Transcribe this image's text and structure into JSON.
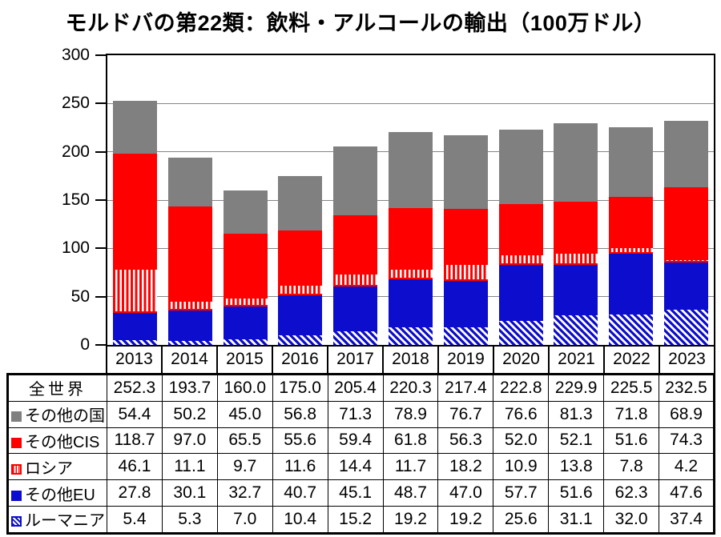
{
  "title": "モルドバの第22類：飲料・アルコールの輸出（100万ドル）",
  "chart_data": {
    "type": "bar",
    "stacked": true,
    "title": "モルドバの第22類：飲料・アルコールの輸出（100万ドル）",
    "unit_label": "100万ドル",
    "categories": [
      "2013",
      "2014",
      "2015",
      "2016",
      "2017",
      "2018",
      "2019",
      "2020",
      "2021",
      "2022",
      "2023"
    ],
    "series": [
      {
        "name": "ルーマニア",
        "pattern": "hatch-blue",
        "color": "#0d0dcd",
        "values": [
          5.4,
          5.3,
          7.0,
          10.4,
          15.2,
          19.2,
          19.2,
          25.6,
          31.1,
          32.0,
          37.4
        ]
      },
      {
        "name": "その他EU",
        "pattern": "solid",
        "color": "#0d0dcd",
        "values": [
          27.8,
          30.1,
          32.7,
          40.7,
          45.1,
          48.7,
          47.0,
          57.7,
          51.6,
          62.3,
          47.6
        ]
      },
      {
        "name": "ロシア",
        "pattern": "vstripes-red",
        "color": "#ff0000",
        "values": [
          46.1,
          11.1,
          9.7,
          11.6,
          14.4,
          11.7,
          18.2,
          10.9,
          13.8,
          7.8,
          4.2
        ]
      },
      {
        "name": "その他CIS",
        "pattern": "solid",
        "color": "#ff0000",
        "values": [
          118.7,
          97.0,
          65.5,
          55.6,
          59.4,
          61.8,
          56.3,
          52.0,
          52.1,
          51.6,
          74.3
        ]
      },
      {
        "name": "その他の国",
        "pattern": "solid",
        "color": "#808080",
        "values": [
          54.4,
          50.2,
          45.0,
          56.8,
          71.3,
          78.9,
          76.7,
          76.6,
          81.3,
          71.8,
          68.9
        ]
      }
    ],
    "totals": {
      "label": "全世界",
      "values": [
        252.3,
        193.7,
        160.0,
        175.0,
        205.4,
        220.3,
        217.4,
        222.8,
        229.9,
        225.5,
        232.5
      ]
    },
    "ylim": [
      0,
      300
    ],
    "yticks": [
      0,
      50,
      100,
      150,
      200,
      250,
      300
    ],
    "grid": true,
    "legend_position": "table-first-column"
  },
  "table": {
    "rows": [
      {
        "label": "全世界",
        "swatch": "none",
        "values": [
          "252.3",
          "193.7",
          "160.0",
          "175.0",
          "205.4",
          "220.3",
          "217.4",
          "222.8",
          "229.9",
          "225.5",
          "232.5"
        ]
      },
      {
        "label": "その他の国",
        "swatch": "gray",
        "values": [
          "54.4",
          "50.2",
          "45.0",
          "56.8",
          "71.3",
          "78.9",
          "76.7",
          "76.6",
          "81.3",
          "71.8",
          "68.9"
        ]
      },
      {
        "label": "その他CIS",
        "swatch": "red",
        "values": [
          "118.7",
          "97.0",
          "65.5",
          "55.6",
          "59.4",
          "61.8",
          "56.3",
          "52.0",
          "52.1",
          "51.6",
          "74.3"
        ]
      },
      {
        "label": "ロシア",
        "swatch": "red-stripes",
        "values": [
          "46.1",
          "11.1",
          "9.7",
          "11.6",
          "14.4",
          "11.7",
          "18.2",
          "10.9",
          "13.8",
          "7.8",
          "4.2"
        ]
      },
      {
        "label": "その他EU",
        "swatch": "blue",
        "values": [
          "27.8",
          "30.1",
          "32.7",
          "40.7",
          "45.1",
          "48.7",
          "47.0",
          "57.7",
          "51.6",
          "62.3",
          "47.6"
        ]
      },
      {
        "label": "ルーマニア",
        "swatch": "blue-hatch",
        "values": [
          "5.4",
          "5.3",
          "7.0",
          "10.4",
          "15.2",
          "19.2",
          "19.2",
          "25.6",
          "31.1",
          "32.0",
          "37.4"
        ]
      }
    ]
  },
  "colors": {
    "gray": "#808080",
    "red": "#ff0000",
    "blue": "#0d0dcd",
    "gridline": "#858585",
    "axis": "#000000"
  }
}
